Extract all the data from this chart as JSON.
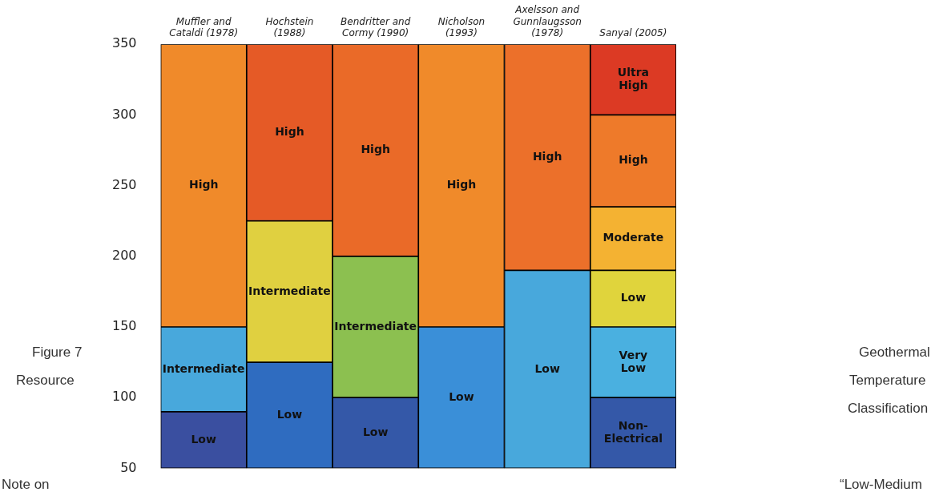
{
  "chart_data": {
    "type": "bar",
    "categories": [
      "Muffler and Cataldi (1978)",
      "Hochstein (1988)",
      "Bendritter and Cormy (1990)",
      "Nicholson (1993)",
      "Axelsson and Gunnlaugsson (1978)",
      "Sanyal (2005)"
    ],
    "series": [
      {
        "base": [
          50,
          50,
          50,
          50,
          50,
          50
        ],
        "values": [
          40,
          75,
          50,
          100,
          140,
          50
        ],
        "value_labels": [
          "Low",
          "Low",
          "Low",
          "Low",
          "Low",
          "Non-Electrical"
        ],
        "colors": [
          "#3a4fa0",
          "#2f6cc0",
          "#3458a8",
          "#3a8fd8",
          "#48a8dc",
          "#3458a8"
        ]
      },
      {
        "base": [
          90,
          125,
          100,
          150,
          190,
          100
        ],
        "values": [
          60,
          100,
          100,
          200,
          160,
          50
        ],
        "value_labels": [
          "Intermediate",
          "Intermediate",
          "Intermediate",
          "High",
          "High",
          "Very Low"
        ],
        "colors": [
          "#48a8dc",
          "#e0d040",
          "#8cc050",
          "#f08a2a",
          "#ec702a",
          "#4ab0e0"
        ]
      },
      {
        "base": [
          150,
          225,
          200,
          null,
          null,
          150
        ],
        "values": [
          200,
          125,
          150,
          null,
          null,
          40
        ],
        "value_labels": [
          "High",
          "High",
          "High",
          null,
          null,
          "Low"
        ],
        "colors": [
          "#f08a2a",
          "#e55a26",
          "#ea6a28",
          null,
          null,
          "#e0d43c"
        ]
      },
      {
        "base": [
          null,
          null,
          null,
          null,
          null,
          190
        ],
        "values": [
          null,
          null,
          null,
          null,
          null,
          45
        ],
        "value_labels": [
          null,
          null,
          null,
          null,
          null,
          "Moderate"
        ],
        "colors": [
          null,
          null,
          null,
          null,
          null,
          "#f4b232"
        ]
      },
      {
        "base": [
          null,
          null,
          null,
          null,
          null,
          235
        ],
        "values": [
          null,
          null,
          null,
          null,
          null,
          65
        ],
        "value_labels": [
          null,
          null,
          null,
          null,
          null,
          "High"
        ],
        "colors": [
          null,
          null,
          null,
          null,
          null,
          "#ee7a2a"
        ]
      },
      {
        "base": [
          null,
          null,
          null,
          null,
          null,
          300
        ],
        "values": [
          null,
          null,
          null,
          null,
          null,
          50
        ],
        "value_labels": [
          null,
          null,
          null,
          null,
          null,
          "Ultra High"
        ],
        "colors": [
          null,
          null,
          null,
          null,
          null,
          "#dc3a24"
        ]
      }
    ],
    "ylim": [
      50,
      350
    ],
    "yticks": [
      50,
      100,
      150,
      200,
      250,
      300,
      350
    ],
    "grid": false,
    "legend": false,
    "annotations": [
      "Figure 7",
      "Geothermal",
      "Resource",
      "Temperature",
      "Classification",
      "Note on",
      "“Low-Medium"
    ]
  }
}
